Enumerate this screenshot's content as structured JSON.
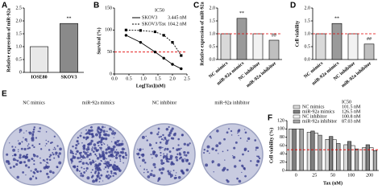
{
  "chart_data": [
    {
      "type": "bar",
      "panel": "A",
      "ylabel": "Relative expression of miR-92a",
      "categories": [
        "IOSE80",
        "SKOV3"
      ],
      "values": [
        1.0,
        1.9
      ],
      "colors": [
        "#e8e8e8",
        "#8a8a8a"
      ],
      "ylim": [
        0,
        2.5
      ],
      "yticks": [
        0,
        {
          "value": 0.5,
          "label": "0.5"
        },
        {
          "value": 1.0,
          "label": "1.0"
        },
        {
          "value": 1.5,
          "label": "1.5"
        },
        {
          "value": 2.0,
          "label": "2.0"
        },
        {
          "value": 2.5,
          "label": "2.5"
        }
      ],
      "annotations": [
        {
          "category": "SKOV3",
          "text": "**"
        }
      ]
    },
    {
      "type": "line",
      "panel": "B",
      "ylabel": "Survival (%)",
      "xlabel": "Log[Tax](nM)",
      "legend_title": "IC50",
      "series": [
        {
          "name": "SKOV3",
          "ic50": "3.445 nM",
          "color": "#000000",
          "x": [
            0.4,
            0.9,
            1.4,
            1.7,
            2.0,
            2.3
          ],
          "values": [
            88,
            72,
            50,
            36,
            22,
            12
          ]
        },
        {
          "name": "SKOV3/Tax",
          "ic50": "104.2 nM",
          "color": "#000000",
          "x": [
            0.4,
            0.9,
            1.4,
            1.7,
            2.0,
            2.3
          ],
          "values": [
            100,
            99,
            96,
            88,
            72,
            42
          ]
        }
      ],
      "xlim": [
        0,
        2.5
      ],
      "xticks": [
        {
          "value": 0,
          "label": "0.0"
        },
        {
          "value": 0.5,
          "label": "0.5"
        },
        {
          "value": 1.0,
          "label": "1.0"
        },
        {
          "value": 1.5,
          "label": "1.5"
        },
        {
          "value": 2.0,
          "label": "2.0"
        },
        {
          "value": 2.5,
          "label": "2.5"
        }
      ],
      "ylim": [
        0,
        150
      ],
      "yticks": [
        0,
        50,
        100,
        150
      ],
      "ref_line": {
        "value": 50,
        "color": "#e00000"
      }
    },
    {
      "type": "bar",
      "panel": "C",
      "ylabel": "Relative expression of miR-92a",
      "categories": [
        "NC mimics",
        "miR-92a mimics",
        "NC inhibitor",
        "miR-92a inhibitor"
      ],
      "values": [
        1.0,
        1.6,
        1.0,
        0.75
      ],
      "colors": [
        "#d9d9d9",
        "#9a9a9a",
        "#f2f2f2",
        "#bfbfbf"
      ],
      "ylim": [
        0,
        2.0
      ],
      "yticks": [
        {
          "value": 0,
          "label": "0.0"
        },
        {
          "value": 0.5,
          "label": "0.5"
        },
        {
          "value": 1.0,
          "label": "1.0"
        },
        {
          "value": 1.5,
          "label": "1.5"
        },
        {
          "value": 2.0,
          "label": "2.0"
        }
      ],
      "ref_line": {
        "value": 1.0,
        "color": "#e00000"
      },
      "annotations": [
        {
          "category": "miR-92a mimics",
          "text": "**"
        },
        {
          "category": "miR-92a inhibitor",
          "text": "##"
        }
      ]
    },
    {
      "type": "bar",
      "panel": "D",
      "ylabel": "Cell viability",
      "categories": [
        "NC mimics",
        "miR-92a mimics",
        "NC inhibitor",
        "miR-92a inhibitor"
      ],
      "values": [
        1.0,
        1.4,
        1.0,
        0.6
      ],
      "colors": [
        "#d9d9d9",
        "#9a9a9a",
        "#f2f2f2",
        "#bfbfbf"
      ],
      "ylim": [
        0,
        2.0
      ],
      "yticks": [
        {
          "value": 0,
          "label": "0.0"
        },
        {
          "value": 0.5,
          "label": "0.5"
        },
        {
          "value": 1.0,
          "label": "1.0"
        },
        {
          "value": 1.5,
          "label": "1.5"
        },
        {
          "value": 2.0,
          "label": "2.0"
        }
      ],
      "ref_line": {
        "value": 1.0,
        "color": "#e00000"
      },
      "annotations": [
        {
          "category": "miR-92a mimics",
          "text": "**"
        },
        {
          "category": "miR-92a inhibitor",
          "text": "##"
        }
      ]
    },
    {
      "type": "image",
      "panel": "E",
      "labels": [
        "NC mimics",
        "miR-92a mimics",
        "NC inhibitor",
        "miR-92a inhibitor"
      ]
    },
    {
      "type": "grouped_bar",
      "panel": "F",
      "ylabel": "Cell viability (%)",
      "xlabel": "Tax (nM)",
      "legend_title": "IC50",
      "categories": [
        "0",
        "25",
        "50",
        "100",
        "200"
      ],
      "series": [
        {
          "name": "NC mimics",
          "ic50": "101.5 nM",
          "color": "#d9d9d9",
          "values": [
            100,
            92,
            75,
            62,
            55
          ]
        },
        {
          "name": "miR-92a mimics",
          "ic50": "126.5 nM",
          "color": "#7f7f7f",
          "values": [
            100,
            95,
            82,
            70,
            62
          ]
        },
        {
          "name": "NC inhibitor",
          "ic50": "100.8 nM",
          "color": "#f2f2f2",
          "values": [
            100,
            90,
            74,
            60,
            55
          ]
        },
        {
          "name": "miR-92a inhibitor",
          "ic50": "87.03 nM",
          "color": "#a6a6a6",
          "values": [
            100,
            85,
            65,
            52,
            48
          ]
        }
      ],
      "ylim": [
        0,
        120
      ],
      "yticks": [
        0,
        20,
        40,
        60,
        80,
        100,
        120
      ],
      "ref_line": {
        "value": 50,
        "color": "#e00000"
      }
    }
  ]
}
